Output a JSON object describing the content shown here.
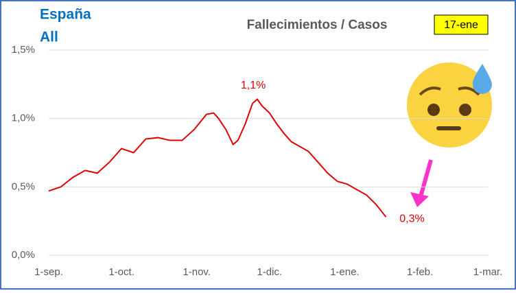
{
  "chart_data": {
    "type": "line",
    "title": "Fallecimientos / Casos",
    "region": "España",
    "subset": "All",
    "date_badge": "17-ene",
    "x": [
      0,
      5,
      10,
      15,
      20,
      25,
      30,
      35,
      40,
      45,
      50,
      55,
      60,
      65,
      68,
      70,
      73,
      76,
      78,
      81,
      84,
      86,
      88,
      91,
      94,
      97,
      100,
      103,
      107,
      111,
      115,
      119,
      123,
      127,
      131,
      135,
      139
    ],
    "series": [
      {
        "color": "#e00000",
        "values": [
          0.47,
          0.5,
          0.57,
          0.62,
          0.6,
          0.68,
          0.78,
          0.75,
          0.85,
          0.86,
          0.84,
          0.84,
          0.92,
          1.03,
          1.04,
          1.0,
          0.92,
          0.81,
          0.84,
          0.96,
          1.11,
          1.14,
          1.09,
          1.04,
          0.96,
          0.89,
          0.83,
          0.8,
          0.76,
          0.68,
          0.6,
          0.54,
          0.52,
          0.48,
          0.44,
          0.37,
          0.28
        ]
      }
    ],
    "xlim": [
      0,
      181
    ],
    "xticks": [
      {
        "value": 0,
        "label": "1-sep."
      },
      {
        "value": 30,
        "label": "1-oct."
      },
      {
        "value": 61,
        "label": "1-nov."
      },
      {
        "value": 91,
        "label": "1-dic."
      },
      {
        "value": 122,
        "label": "1-ene."
      },
      {
        "value": 153,
        "label": "1-feb."
      },
      {
        "value": 181,
        "label": "1-mar."
      }
    ],
    "ylim": [
      0,
      1.5
    ],
    "yticks": [
      {
        "value": 0,
        "label": "0,0%"
      },
      {
        "value": 0.5,
        "label": "0,5%"
      },
      {
        "value": 1,
        "label": "1,0%"
      },
      {
        "value": 1.5,
        "label": "1,5%"
      }
    ],
    "grid": true,
    "annotations": [
      {
        "text": "1,1%",
        "point": 21
      },
      {
        "text": "0,3%",
        "point": 36
      }
    ]
  }
}
